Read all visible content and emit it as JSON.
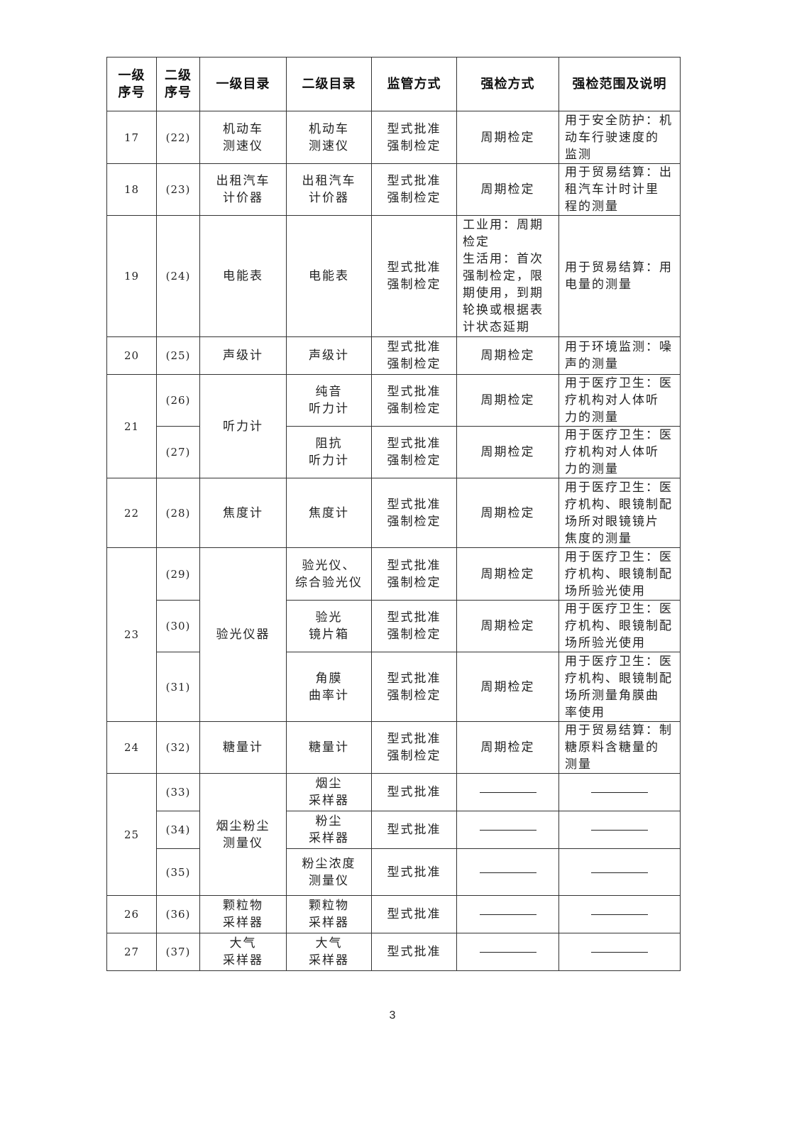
{
  "table": {
    "headers": [
      "一级\n序号",
      "二级\n序号",
      "一级目录",
      "二级目录",
      "监管方式",
      "强检方式",
      "强检范围及说明"
    ],
    "rows": [
      [
        {
          "t": "17"
        },
        {
          "t": "(22)"
        },
        {
          "t": "机动车\n测速仪"
        },
        {
          "t": "机动车\n测速仪"
        },
        {
          "t": "型式批准\n强制检定"
        },
        {
          "t": "周期检定"
        },
        {
          "t": "用于安全防护：机\n动车行驶速度的\n监测",
          "left": true
        }
      ],
      [
        {
          "t": "18"
        },
        {
          "t": "(23)"
        },
        {
          "t": "出租汽车\n计价器"
        },
        {
          "t": "出租汽车\n计价器"
        },
        {
          "t": "型式批准\n强制检定"
        },
        {
          "t": "周期检定"
        },
        {
          "t": "用于贸易结算：出\n租汽车计时计里\n程的测量",
          "left": true
        }
      ],
      [
        {
          "t": "19"
        },
        {
          "t": "(24)"
        },
        {
          "t": "电能表"
        },
        {
          "t": "电能表"
        },
        {
          "t": "型式批准\n强制检定"
        },
        {
          "t": "工业用：周期\n检定\n生活用：首次\n强制检定，限\n期使用，到期\n轮换或根据表\n计状态延期",
          "left": true
        },
        {
          "t": "用于贸易结算：用\n电量的测量",
          "left": true
        }
      ],
      [
        {
          "t": "20"
        },
        {
          "t": "(25)"
        },
        {
          "t": "声级计"
        },
        {
          "t": "声级计"
        },
        {
          "t": "型式批准\n强制检定"
        },
        {
          "t": "周期检定"
        },
        {
          "t": "用于环境监测：噪\n声的测量",
          "left": true
        }
      ],
      [
        {
          "t": "21",
          "rs": 2
        },
        {
          "t": "(26)"
        },
        {
          "t": "听力计",
          "rs": 2
        },
        {
          "t": "纯音\n听力计"
        },
        {
          "t": "型式批准\n强制检定"
        },
        {
          "t": "周期检定"
        },
        {
          "t": "用于医疗卫生：医\n疗机构对人体听\n力的测量",
          "left": true
        }
      ],
      [
        {
          "t": "(27)"
        },
        {
          "t": "阻抗\n听力计"
        },
        {
          "t": "型式批准\n强制检定"
        },
        {
          "t": "周期检定"
        },
        {
          "t": "用于医疗卫生：医\n疗机构对人体听\n力的测量",
          "left": true
        }
      ],
      [
        {
          "t": "22"
        },
        {
          "t": "(28)"
        },
        {
          "t": "焦度计"
        },
        {
          "t": "焦度计"
        },
        {
          "t": "型式批准\n强制检定"
        },
        {
          "t": "周期检定"
        },
        {
          "t": "用于医疗卫生：医\n疗机构、眼镜制配\n场所对眼镜镜片\n焦度的测量",
          "left": true
        }
      ],
      [
        {
          "t": "23",
          "rs": 3
        },
        {
          "t": "(29)"
        },
        {
          "t": "验光仪器",
          "rs": 3
        },
        {
          "t": "验光仪、\n综合验光仪"
        },
        {
          "t": "型式批准\n强制检定"
        },
        {
          "t": "周期检定"
        },
        {
          "t": "用于医疗卫生：医\n疗机构、眼镜制配\n场所验光使用",
          "left": true
        }
      ],
      [
        {
          "t": "(30)"
        },
        {
          "t": "验光\n镜片箱"
        },
        {
          "t": "型式批准\n强制检定"
        },
        {
          "t": "周期检定"
        },
        {
          "t": "用于医疗卫生：医\n疗机构、眼镜制配\n场所验光使用",
          "left": true
        }
      ],
      [
        {
          "t": "(31)"
        },
        {
          "t": "角膜\n曲率计"
        },
        {
          "t": "型式批准\n强制检定"
        },
        {
          "t": "周期检定"
        },
        {
          "t": "用于医疗卫生：医\n疗机构、眼镜制配\n场所测量角膜曲\n率使用",
          "left": true
        }
      ],
      [
        {
          "t": "24"
        },
        {
          "t": "(32)"
        },
        {
          "t": "糖量计"
        },
        {
          "t": "糖量计"
        },
        {
          "t": "型式批准\n强制检定"
        },
        {
          "t": "周期检定"
        },
        {
          "t": "用于贸易结算：制\n糖原料含糖量的\n测量",
          "left": true
        }
      ],
      [
        {
          "t": "25",
          "rs": 3
        },
        {
          "t": "(33)"
        },
        {
          "t": "烟尘粉尘\n测量仪",
          "rs": 3
        },
        {
          "t": "烟尘\n采样器"
        },
        {
          "t": "型式批准"
        },
        {
          "dash": true
        },
        {
          "dash": true
        }
      ],
      [
        {
          "t": "(34)"
        },
        {
          "t": "粉尘\n采样器"
        },
        {
          "t": "型式批准"
        },
        {
          "dash": true
        },
        {
          "dash": true
        }
      ],
      [
        {
          "t": "(35)"
        },
        {
          "t": "粉尘浓度\n测量仪"
        },
        {
          "t": "型式批准"
        },
        {
          "dash": true
        },
        {
          "dash": true
        }
      ],
      [
        {
          "t": "26"
        },
        {
          "t": "(36)"
        },
        {
          "t": "颗粒物\n采样器"
        },
        {
          "t": "颗粒物\n采样器"
        },
        {
          "t": "型式批准"
        },
        {
          "dash": true
        },
        {
          "dash": true
        }
      ],
      [
        {
          "t": "27"
        },
        {
          "t": "(37)"
        },
        {
          "t": "大气\n采样器"
        },
        {
          "t": "大气\n采样器"
        },
        {
          "t": "型式批准"
        },
        {
          "dash": true
        },
        {
          "dash": true
        }
      ]
    ]
  },
  "page_number": "3"
}
